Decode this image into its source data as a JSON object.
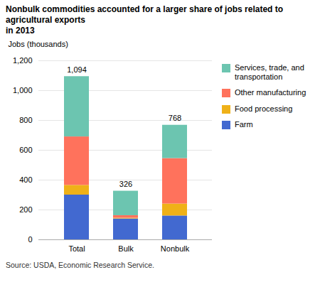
{
  "chart_data": {
    "type": "bar",
    "title": "Nonbulk commodities accounted for a larger share of jobs related to agricultural exports\nin 2013",
    "caption": "Source: USDA, Economic Research Service.",
    "ylabel": "Jobs (thousands)",
    "categories": [
      "Total",
      "Bulk",
      "Nonbulk"
    ],
    "series": [
      {
        "name": "Farm",
        "values": [
          300,
          140,
          160
        ]
      },
      {
        "name": "Food processing",
        "values": [
          65,
          5,
          80
        ]
      },
      {
        "name": "Other manufacturing",
        "values": [
          325,
          17,
          305
        ]
      },
      {
        "name": "Services, trade, and\ntransportation",
        "values": [
          404,
          164,
          223
        ]
      }
    ],
    "stacked": true,
    "totals": [
      1094,
      326,
      768
    ],
    "total_labels": [
      "1,094",
      "326",
      "768"
    ],
    "ylim": [
      0,
      1200
    ],
    "yticks": [
      0,
      200,
      400,
      600,
      800,
      {
        "value": 1000,
        "label": "1,000"
      },
      {
        "value": 1200,
        "label": "1,200"
      }
    ],
    "grid": true,
    "legend": "right"
  }
}
